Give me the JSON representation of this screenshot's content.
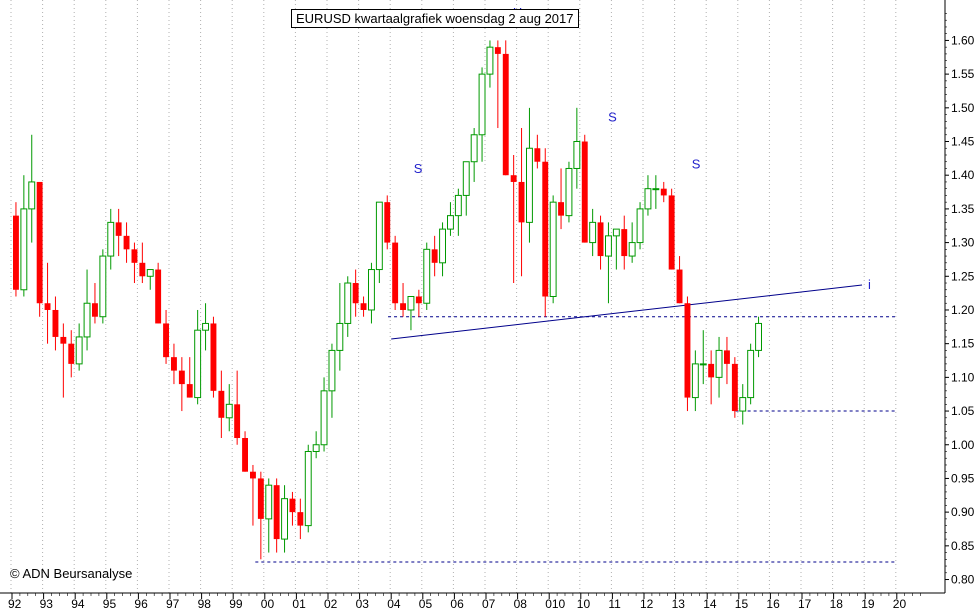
{
  "title": "EURUSD kwartaalgrafiek woensdag 2 aug 2017",
  "copyright": "© ADN Beursanalyse",
  "colors": {
    "up": "#009900",
    "down": "#ff0000",
    "trendline": "#00008b",
    "support": "#00008b",
    "annotation": "#2222cc",
    "grid": "#b0b0b0"
  },
  "chart_data": {
    "type": "candlestick",
    "period": "quarterly",
    "x_ticks": [
      "92",
      "93",
      "94",
      "95",
      "96",
      "97",
      "98",
      "99",
      "00",
      "01",
      "02",
      "03",
      "04",
      "05",
      "06",
      "07",
      "08",
      "010",
      "10",
      "11",
      "12",
      "13",
      "14",
      "15",
      "16",
      "17",
      "18",
      "19",
      "20"
    ],
    "y_ticks": [
      "0.80",
      "0.85",
      "0.90",
      "0.95",
      "1.00",
      "1.05",
      "1.10",
      "1.15",
      "1.20",
      "1.25",
      "1.30",
      "1.35",
      "1.40",
      "1.45",
      "1.50",
      "1.55",
      "1.60"
    ],
    "ylim": [
      0.78,
      1.66
    ],
    "start_year": 1992,
    "candles": [
      [
        1.34,
        1.36,
        1.22,
        1.23
      ],
      [
        1.23,
        1.4,
        1.22,
        1.35
      ],
      [
        1.35,
        1.46,
        1.3,
        1.39
      ],
      [
        1.39,
        1.39,
        1.19,
        1.21
      ],
      [
        1.21,
        1.27,
        1.15,
        1.2
      ],
      [
        1.2,
        1.22,
        1.14,
        1.16
      ],
      [
        1.16,
        1.18,
        1.07,
        1.15
      ],
      [
        1.15,
        1.17,
        1.1,
        1.12
      ],
      [
        1.12,
        1.18,
        1.11,
        1.16
      ],
      [
        1.16,
        1.26,
        1.14,
        1.21
      ],
      [
        1.21,
        1.24,
        1.18,
        1.19
      ],
      [
        1.19,
        1.29,
        1.18,
        1.28
      ],
      [
        1.28,
        1.35,
        1.26,
        1.33
      ],
      [
        1.33,
        1.35,
        1.28,
        1.31
      ],
      [
        1.31,
        1.33,
        1.27,
        1.29
      ],
      [
        1.29,
        1.3,
        1.24,
        1.27
      ],
      [
        1.27,
        1.3,
        1.24,
        1.25
      ],
      [
        1.25,
        1.26,
        1.23,
        1.26
      ],
      [
        1.26,
        1.27,
        1.18,
        1.18
      ],
      [
        1.18,
        1.2,
        1.12,
        1.13
      ],
      [
        1.13,
        1.15,
        1.09,
        1.11
      ],
      [
        1.11,
        1.13,
        1.05,
        1.09
      ],
      [
        1.09,
        1.13,
        1.07,
        1.07
      ],
      [
        1.07,
        1.2,
        1.06,
        1.17
      ],
      [
        1.17,
        1.21,
        1.14,
        1.18
      ],
      [
        1.18,
        1.19,
        1.07,
        1.08
      ],
      [
        1.08,
        1.11,
        1.01,
        1.04
      ],
      [
        1.04,
        1.09,
        1.02,
        1.06
      ],
      [
        1.06,
        1.11,
        1.0,
        1.01
      ],
      [
        1.01,
        1.02,
        0.96,
        0.96
      ],
      [
        0.96,
        0.97,
        0.88,
        0.95
      ],
      [
        0.95,
        0.96,
        0.83,
        0.89
      ],
      [
        0.89,
        0.95,
        0.84,
        0.94
      ],
      [
        0.94,
        0.95,
        0.84,
        0.86
      ],
      [
        0.86,
        0.94,
        0.84,
        0.92
      ],
      [
        0.92,
        0.93,
        0.88,
        0.9
      ],
      [
        0.9,
        0.92,
        0.86,
        0.88
      ],
      [
        0.88,
        1.0,
        0.87,
        0.99
      ],
      [
        0.99,
        1.02,
        0.98,
        1.0
      ],
      [
        1.0,
        1.1,
        0.99,
        1.08
      ],
      [
        1.08,
        1.15,
        1.04,
        1.14
      ],
      [
        1.14,
        1.24,
        1.11,
        1.18
      ],
      [
        1.18,
        1.25,
        1.16,
        1.24
      ],
      [
        1.24,
        1.26,
        1.19,
        1.21
      ],
      [
        1.21,
        1.22,
        1.19,
        1.2
      ],
      [
        1.2,
        1.27,
        1.18,
        1.26
      ],
      [
        1.26,
        1.36,
        1.24,
        1.36
      ],
      [
        1.36,
        1.37,
        1.29,
        1.3
      ],
      [
        1.3,
        1.31,
        1.2,
        1.21
      ],
      [
        1.21,
        1.24,
        1.19,
        1.2
      ],
      [
        1.2,
        1.22,
        1.17,
        1.22
      ],
      [
        1.22,
        1.23,
        1.19,
        1.21
      ],
      [
        1.21,
        1.3,
        1.2,
        1.29
      ],
      [
        1.29,
        1.31,
        1.25,
        1.27
      ],
      [
        1.27,
        1.33,
        1.25,
        1.32
      ],
      [
        1.32,
        1.36,
        1.31,
        1.34
      ],
      [
        1.34,
        1.38,
        1.31,
        1.37
      ],
      [
        1.37,
        1.42,
        1.34,
        1.42
      ],
      [
        1.42,
        1.47,
        1.39,
        1.46
      ],
      [
        1.46,
        1.56,
        1.42,
        1.55
      ],
      [
        1.55,
        1.6,
        1.53,
        1.59
      ],
      [
        1.59,
        1.6,
        1.47,
        1.58
      ],
      [
        1.58,
        1.6,
        1.4,
        1.4
      ],
      [
        1.4,
        1.43,
        1.24,
        1.39
      ],
      [
        1.39,
        1.47,
        1.25,
        1.33
      ],
      [
        1.33,
        1.5,
        1.3,
        1.44
      ],
      [
        1.44,
        1.46,
        1.41,
        1.42
      ],
      [
        1.42,
        1.44,
        1.19,
        1.22
      ],
      [
        1.22,
        1.37,
        1.21,
        1.36
      ],
      [
        1.36,
        1.41,
        1.32,
        1.34
      ],
      [
        1.34,
        1.42,
        1.33,
        1.41
      ],
      [
        1.41,
        1.5,
        1.38,
        1.45
      ],
      [
        1.45,
        1.46,
        1.3,
        1.3
      ],
      [
        1.3,
        1.35,
        1.28,
        1.33
      ],
      [
        1.33,
        1.34,
        1.26,
        1.28
      ],
      [
        1.28,
        1.33,
        1.21,
        1.31
      ],
      [
        1.31,
        1.32,
        1.26,
        1.32
      ],
      [
        1.32,
        1.34,
        1.26,
        1.28
      ],
      [
        1.28,
        1.33,
        1.27,
        1.3
      ],
      [
        1.3,
        1.36,
        1.29,
        1.35
      ],
      [
        1.35,
        1.4,
        1.34,
        1.38
      ],
      [
        1.38,
        1.4,
        1.35,
        1.38
      ],
      [
        1.38,
        1.39,
        1.36,
        1.37
      ],
      [
        1.37,
        1.38,
        1.26,
        1.26
      ],
      [
        1.26,
        1.28,
        1.21,
        1.21
      ],
      [
        1.21,
        1.22,
        1.05,
        1.07
      ],
      [
        1.07,
        1.14,
        1.05,
        1.12
      ],
      [
        1.12,
        1.17,
        1.09,
        1.12
      ],
      [
        1.12,
        1.14,
        1.06,
        1.1
      ],
      [
        1.1,
        1.16,
        1.07,
        1.14
      ],
      [
        1.14,
        1.16,
        1.09,
        1.12
      ],
      [
        1.12,
        1.13,
        1.04,
        1.05
      ],
      [
        1.05,
        1.09,
        1.03,
        1.07
      ],
      [
        1.07,
        1.15,
        1.06,
        1.14
      ],
      [
        1.14,
        1.19,
        1.13,
        1.18
      ]
    ],
    "trendline": {
      "from": [
        2004.0,
        1.157
      ],
      "to": [
        2018.9,
        1.237
      ],
      "label": "i"
    },
    "support_lines": [
      {
        "y": 1.19,
        "x_from": 2003.9,
        "x_to": 2020.0
      },
      {
        "y": 1.05,
        "x_from": 2014.9,
        "x_to": 2020.0
      },
      {
        "y": 0.826,
        "x_from": 1999.7,
        "x_to": 2020.0
      }
    ],
    "annotations": [
      {
        "text": "S",
        "x": 2004.85,
        "y": 1.403
      },
      {
        "text": "H",
        "x": 2008.0,
        "y": 1.635
      },
      {
        "text": "S",
        "x": 2011.0,
        "y": 1.48
      },
      {
        "text": "S",
        "x": 2013.65,
        "y": 1.41
      }
    ]
  }
}
